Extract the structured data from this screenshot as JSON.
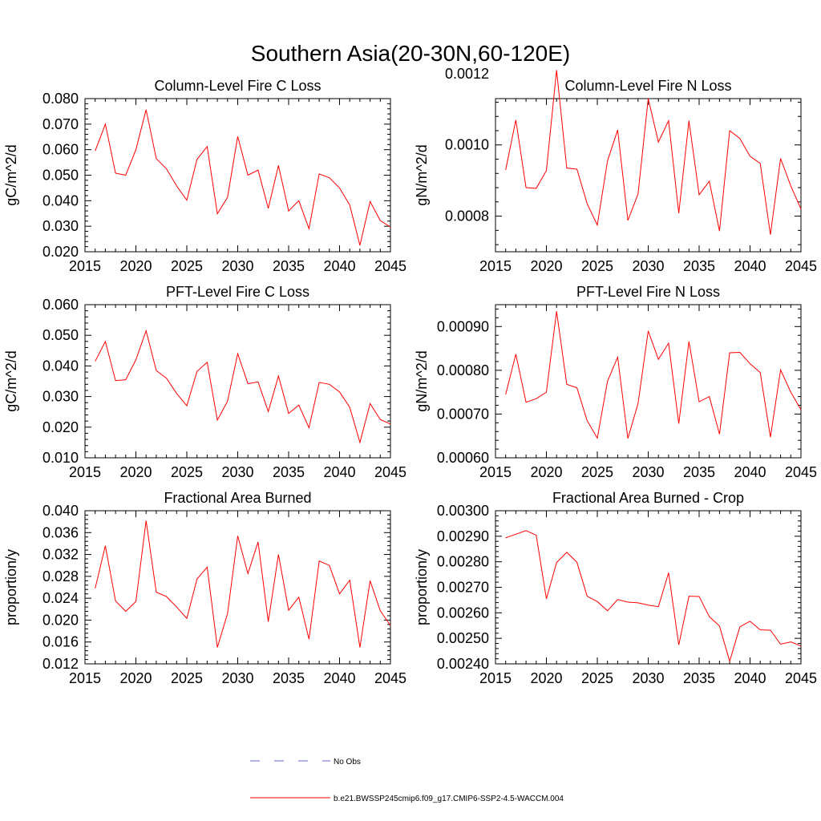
{
  "title": "Southern Asia(20-30N,60-120E)",
  "colors": {
    "series": "#ff0000",
    "obs": "#6666cc",
    "axis": "#000000"
  },
  "legend": {
    "items": [
      {
        "label": "No Obs",
        "style": "dashed"
      },
      {
        "label": "b.e21.BWSSP245cmip6.f09_g17.CMIP6-SSP2-4.5-WACCM.004",
        "style": "solid"
      }
    ]
  },
  "chart_data": [
    {
      "type": "line",
      "title": "Column-Level Fire C Loss",
      "ylabel": "gC/m^2/d",
      "xlim": [
        2015,
        2045
      ],
      "ylim": [
        0.02,
        0.08
      ],
      "xticks": [
        2015,
        2020,
        2025,
        2030,
        2035,
        2040,
        2045
      ],
      "yticks": [
        0.02,
        0.03,
        0.04,
        0.05,
        0.06,
        0.07,
        0.08
      ],
      "ytick_labels": [
        "0.020",
        "0.030",
        "0.040",
        "0.050",
        "0.060",
        "0.070",
        "0.080"
      ],
      "series": [
        {
          "name": "b.e21.BWSSP245cmip6.f09_g17.CMIP6-SSP2-4.5-WACCM.004",
          "x": [
            2016,
            2017,
            2018,
            2019,
            2020,
            2021,
            2022,
            2023,
            2024,
            2025,
            2026,
            2027,
            2028,
            2029,
            2030,
            2031,
            2032,
            2033,
            2034,
            2035,
            2036,
            2037,
            2038,
            2039,
            2040,
            2041,
            2042,
            2043,
            2044,
            2045
          ],
          "values": [
            0.0595,
            0.07,
            0.0508,
            0.05,
            0.06,
            0.0757,
            0.0565,
            0.0525,
            0.0458,
            0.0402,
            0.0562,
            0.0612,
            0.0349,
            0.0413,
            0.0652,
            0.05,
            0.052,
            0.037,
            0.0538,
            0.036,
            0.04,
            0.029,
            0.0505,
            0.049,
            0.045,
            0.0383,
            0.0225,
            0.0397,
            0.0322,
            0.0297
          ]
        }
      ]
    },
    {
      "type": "line",
      "title": "Column-Level Fire N Loss",
      "ylabel": "gN/m^2/d",
      "xlim": [
        2015,
        2045
      ],
      "ylim": [
        0.0007,
        0.00113
      ],
      "xticks": [
        2015,
        2020,
        2025,
        2030,
        2035,
        2040,
        2045
      ],
      "yticks": [
        0.0008,
        0.001,
        0.0012
      ],
      "ytick_labels": [
        "0.0008",
        "0.0010",
        "0.0012"
      ],
      "series": [
        {
          "name": "b.e21.BWSSP245cmip6.f09_g17.CMIP6-SSP2-4.5-WACCM.004",
          "x": [
            2016,
            2017,
            2018,
            2019,
            2020,
            2021,
            2022,
            2023,
            2024,
            2025,
            2026,
            2027,
            2028,
            2029,
            2030,
            2031,
            2032,
            2033,
            2034,
            2035,
            2036,
            2037,
            2038,
            2039,
            2040,
            2041,
            2042,
            2043,
            2044,
            2045
          ],
          "values": [
            0.00093,
            0.00107,
            0.00088,
            0.000878,
            0.000928,
            0.00121,
            0.000935,
            0.000932,
            0.000835,
            0.000775,
            0.000955,
            0.001042,
            0.000788,
            0.000862,
            0.00113,
            0.001008,
            0.001068,
            0.000808,
            0.001068,
            0.00086,
            0.000898,
            0.000758,
            0.00104,
            0.001018,
            0.000968,
            0.000948,
            0.000748,
            0.000962,
            0.000885,
            0.00082
          ]
        }
      ]
    },
    {
      "type": "line",
      "title": "PFT-Level Fire C Loss",
      "ylabel": "gC/m^2/d",
      "xlim": [
        2015,
        2045
      ],
      "ylim": [
        0.01,
        0.06
      ],
      "xticks": [
        2015,
        2020,
        2025,
        2030,
        2035,
        2040,
        2045
      ],
      "yticks": [
        0.01,
        0.02,
        0.03,
        0.04,
        0.05,
        0.06
      ],
      "ytick_labels": [
        "0.010",
        "0.020",
        "0.030",
        "0.040",
        "0.050",
        "0.060"
      ],
      "series": [
        {
          "name": "b.e21.BWSSP245cmip6.f09_g17.CMIP6-SSP2-4.5-WACCM.004",
          "x": [
            2016,
            2017,
            2018,
            2019,
            2020,
            2021,
            2022,
            2023,
            2024,
            2025,
            2026,
            2027,
            2028,
            2029,
            2030,
            2031,
            2032,
            2033,
            2034,
            2035,
            2036,
            2037,
            2038,
            2039,
            2040,
            2041,
            2042,
            2043,
            2044,
            2045
          ],
          "values": [
            0.0415,
            0.048,
            0.0352,
            0.0355,
            0.042,
            0.0515,
            0.0385,
            0.036,
            0.031,
            0.027,
            0.0382,
            0.0412,
            0.0223,
            0.0285,
            0.044,
            0.0342,
            0.0348,
            0.0251,
            0.0367,
            0.0245,
            0.0272,
            0.0198,
            0.0346,
            0.034,
            0.0315,
            0.0265,
            0.015,
            0.0277,
            0.0225,
            0.021
          ]
        }
      ]
    },
    {
      "type": "line",
      "title": "PFT-Level Fire N Loss",
      "ylabel": "gN/m^2/d",
      "xlim": [
        2015,
        2045
      ],
      "ylim": [
        0.0006,
        0.00095
      ],
      "xticks": [
        2015,
        2020,
        2025,
        2030,
        2035,
        2040,
        2045
      ],
      "yticks": [
        0.0006,
        0.0007,
        0.0008,
        0.0009
      ],
      "ytick_labels": [
        "0.00060",
        "0.00070",
        "0.00080",
        "0.00090"
      ],
      "series": [
        {
          "name": "b.e21.BWSSP245cmip6.f09_g17.CMIP6-SSP2-4.5-WACCM.004",
          "x": [
            2016,
            2017,
            2018,
            2019,
            2020,
            2021,
            2022,
            2023,
            2024,
            2025,
            2026,
            2027,
            2028,
            2029,
            2030,
            2031,
            2032,
            2033,
            2034,
            2035,
            2036,
            2037,
            2038,
            2039,
            2040,
            2041,
            2042,
            2043,
            2044,
            2045
          ],
          "values": [
            0.000745,
            0.000837,
            0.000727,
            0.000735,
            0.00075,
            0.000935,
            0.000768,
            0.00076,
            0.000685,
            0.000645,
            0.000775,
            0.00083,
            0.000644,
            0.000724,
            0.00089,
            0.000825,
            0.000862,
            0.000678,
            0.000866,
            0.000728,
            0.00074,
            0.000654,
            0.00084,
            0.000841,
            0.000815,
            0.000795,
            0.000647,
            0.000801,
            0.00075,
            0.00071
          ]
        }
      ]
    },
    {
      "type": "line",
      "title": "Fractional Area Burned",
      "ylabel": "proportion/y",
      "xlim": [
        2015,
        2045
      ],
      "ylim": [
        0.012,
        0.04
      ],
      "xticks": [
        2015,
        2020,
        2025,
        2030,
        2035,
        2040,
        2045
      ],
      "yticks": [
        0.012,
        0.016,
        0.02,
        0.024,
        0.028,
        0.032,
        0.036,
        0.04
      ],
      "ytick_labels": [
        "0.012",
        "0.016",
        "0.020",
        "0.024",
        "0.028",
        "0.032",
        "0.036",
        "0.040"
      ],
      "series": [
        {
          "name": "b.e21.BWSSP245cmip6.f09_g17.CMIP6-SSP2-4.5-WACCM.004",
          "x": [
            2016,
            2017,
            2018,
            2019,
            2020,
            2021,
            2022,
            2023,
            2024,
            2025,
            2026,
            2027,
            2028,
            2029,
            2030,
            2031,
            2032,
            2033,
            2034,
            2035,
            2036,
            2037,
            2038,
            2039,
            2040,
            2041,
            2042,
            2043,
            2044,
            2045
          ],
          "values": [
            0.0258,
            0.0336,
            0.0235,
            0.0216,
            0.0234,
            0.0382,
            0.0251,
            0.0243,
            0.0224,
            0.0203,
            0.0275,
            0.0297,
            0.015,
            0.0212,
            0.0354,
            0.0285,
            0.0343,
            0.0197,
            0.032,
            0.0218,
            0.0242,
            0.0165,
            0.0308,
            0.03,
            0.0248,
            0.0273,
            0.015,
            0.0272,
            0.0217,
            0.019
          ]
        }
      ]
    },
    {
      "type": "line",
      "title": "Fractional Area Burned - Crop",
      "ylabel": "proportion/y",
      "xlim": [
        2015,
        2045
      ],
      "ylim": [
        0.0024,
        0.003
      ],
      "xticks": [
        2015,
        2020,
        2025,
        2030,
        2035,
        2040,
        2045
      ],
      "yticks": [
        0.0024,
        0.0025,
        0.0026,
        0.0027,
        0.0028,
        0.0029,
        0.003
      ],
      "ytick_labels": [
        "0.00240",
        "0.00250",
        "0.00260",
        "0.00270",
        "0.00280",
        "0.00290",
        "0.00300"
      ],
      "series": [
        {
          "name": "b.e21.BWSSP245cmip6.f09_g17.CMIP6-SSP2-4.5-WACCM.004",
          "x": [
            2016,
            2017,
            2018,
            2019,
            2020,
            2021,
            2022,
            2023,
            2024,
            2025,
            2026,
            2027,
            2028,
            2029,
            2030,
            2031,
            2032,
            2033,
            2034,
            2035,
            2036,
            2037,
            2038,
            2039,
            2040,
            2041,
            2042,
            2043,
            2044,
            2045
          ],
          "values": [
            0.002894,
            0.002908,
            0.002922,
            0.002904,
            0.002655,
            0.002797,
            0.002837,
            0.002798,
            0.002665,
            0.002644,
            0.002608,
            0.002652,
            0.002642,
            0.002639,
            0.00263,
            0.002624,
            0.002757,
            0.002474,
            0.002665,
            0.002664,
            0.002585,
            0.002548,
            0.00241,
            0.002545,
            0.002567,
            0.002533,
            0.002532,
            0.002477,
            0.002486,
            0.00247
          ]
        }
      ]
    }
  ]
}
